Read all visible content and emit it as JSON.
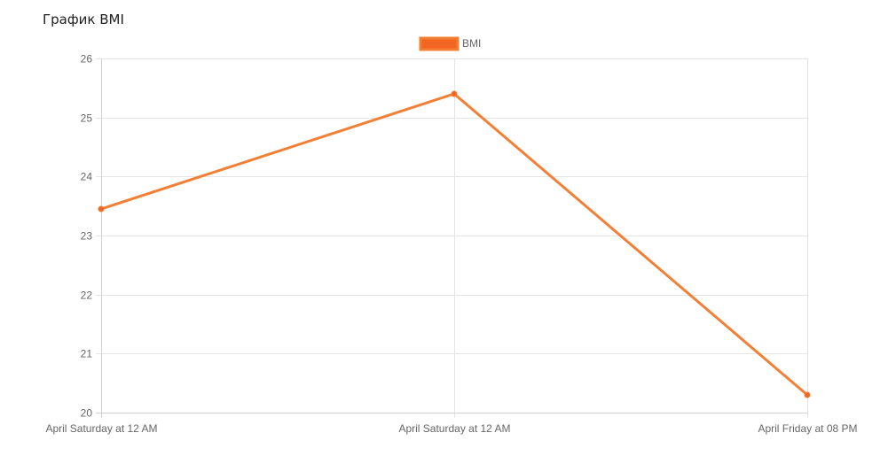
{
  "page": {
    "title": "График BMI"
  },
  "chart_data": {
    "type": "line",
    "categories": [
      "April Saturday at 12 AM",
      "April Saturday at 12 AM",
      "April Friday at 08 PM"
    ],
    "series": [
      {
        "name": "BMI",
        "values": [
          23.45,
          25.4,
          20.3
        ],
        "color": "#f27f34",
        "point_color": "#f26522"
      }
    ],
    "ylim": [
      20,
      26
    ],
    "yticks": [
      20,
      21,
      22,
      23,
      24,
      25,
      26
    ],
    "grid": true,
    "legend": "top-center"
  }
}
